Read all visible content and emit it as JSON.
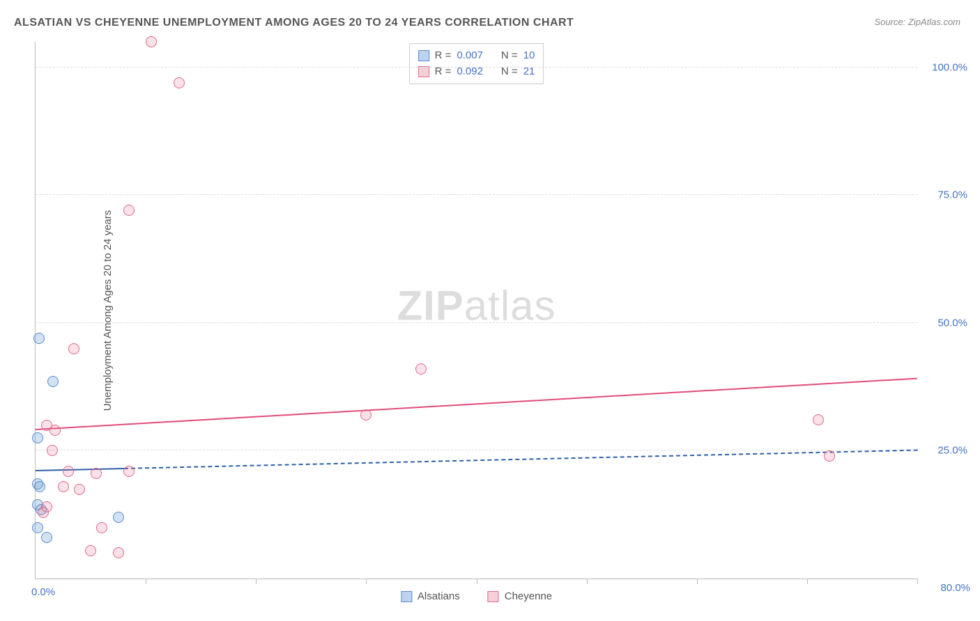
{
  "title": "ALSATIAN VS CHEYENNE UNEMPLOYMENT AMONG AGES 20 TO 24 YEARS CORRELATION CHART",
  "source": "Source: ZipAtlas.com",
  "ylabel": "Unemployment Among Ages 20 to 24 years",
  "watermark_bold": "ZIP",
  "watermark_rest": "atlas",
  "chart": {
    "type": "scatter",
    "xlim": [
      0,
      80
    ],
    "ylim": [
      0,
      105
    ],
    "x0_label": "0.0%",
    "xmax_label": "80.0%",
    "yticks": [
      {
        "value": 25,
        "label": "25.0%"
      },
      {
        "value": 50,
        "label": "50.0%"
      },
      {
        "value": 75,
        "label": "75.0%"
      },
      {
        "value": 100,
        "label": "100.0%"
      }
    ],
    "xtick_positions": [
      10,
      20,
      30,
      40,
      50,
      60,
      70,
      80
    ],
    "background_color": "#ffffff",
    "grid_color": "#dddddd",
    "series": [
      {
        "name": "Alsatians",
        "fill_color": "rgba(96,150,210,0.28)",
        "stroke_color": "#5a8cd0",
        "swatch_fill": "#bcd2ee",
        "swatch_stroke": "#5a8cd0",
        "marker_radius": 8,
        "R": "0.007",
        "N": "10",
        "trend": {
          "y_intercept": 21.0,
          "y_at_xmax": 25.0,
          "color": "#2e5fa8",
          "width": 2,
          "dashed_after_x": 8
        },
        "points": [
          {
            "x": 0.3,
            "y": 47
          },
          {
            "x": 1.6,
            "y": 38.5
          },
          {
            "x": 0.2,
            "y": 27.5
          },
          {
            "x": 0.2,
            "y": 18.5
          },
          {
            "x": 0.4,
            "y": 18
          },
          {
            "x": 0.2,
            "y": 14.5
          },
          {
            "x": 0.5,
            "y": 13.5
          },
          {
            "x": 7.5,
            "y": 12
          },
          {
            "x": 0.2,
            "y": 10
          },
          {
            "x": 1.0,
            "y": 8
          }
        ]
      },
      {
        "name": "Cheyenne",
        "fill_color": "rgba(236,120,150,0.22)",
        "stroke_color": "#e06a8a",
        "swatch_fill": "#f7cfd9",
        "swatch_stroke": "#e06a8a",
        "marker_radius": 8,
        "R": "0.092",
        "N": "21",
        "trend": {
          "y_intercept": 29.0,
          "y_at_xmax": 39.0,
          "color": "#e24a78",
          "width": 2.5,
          "dashed_after_x": 80
        },
        "points": [
          {
            "x": 10.5,
            "y": 105
          },
          {
            "x": 13,
            "y": 97
          },
          {
            "x": 8.5,
            "y": 72
          },
          {
            "x": 3.5,
            "y": 45
          },
          {
            "x": 35,
            "y": 41
          },
          {
            "x": 30,
            "y": 32
          },
          {
            "x": 71,
            "y": 31
          },
          {
            "x": 1.0,
            "y": 30
          },
          {
            "x": 1.8,
            "y": 29
          },
          {
            "x": 1.5,
            "y": 25
          },
          {
            "x": 72,
            "y": 24
          },
          {
            "x": 3.0,
            "y": 21
          },
          {
            "x": 5.5,
            "y": 20.5
          },
          {
            "x": 8.5,
            "y": 21
          },
          {
            "x": 2.5,
            "y": 18
          },
          {
            "x": 4.0,
            "y": 17.5
          },
          {
            "x": 1.0,
            "y": 14
          },
          {
            "x": 0.7,
            "y": 13
          },
          {
            "x": 6.0,
            "y": 10
          },
          {
            "x": 5.0,
            "y": 5.5
          },
          {
            "x": 7.5,
            "y": 5
          }
        ]
      }
    ]
  },
  "legend_labels": {
    "alsatians": "Alsatians",
    "cheyenne": "Cheyenne"
  },
  "stats_labels": {
    "R": "R =",
    "N": "N ="
  }
}
